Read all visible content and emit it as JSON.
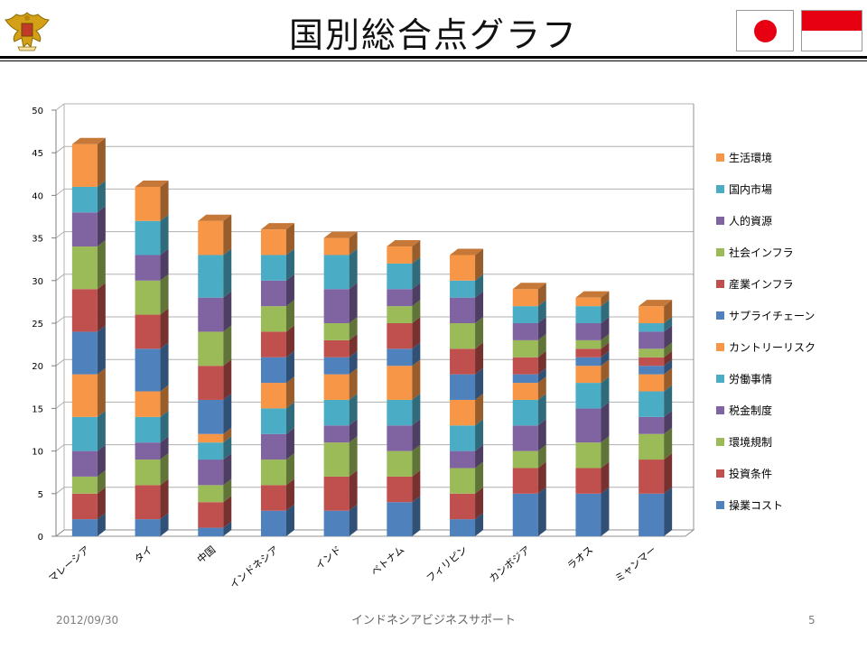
{
  "header": {
    "title": "国別総合点グラフ"
  },
  "footer": {
    "date": "2012/09/30",
    "center": "インドネシアビジネスサポート",
    "page": "5"
  },
  "chart_data": {
    "type": "bar",
    "stacked": true,
    "categories": [
      "マレーシア",
      "タイ",
      "中国",
      "インドネシア",
      "インド",
      "ベトナム",
      "フィリピン",
      "カンボジア",
      "ラオス",
      "ミャンマー"
    ],
    "ylim": [
      0,
      50
    ],
    "yticks": [
      0,
      5,
      10,
      15,
      20,
      25,
      30,
      35,
      40,
      45,
      50
    ],
    "grid": true,
    "legend_position": "right",
    "series": [
      {
        "name": "操業コスト",
        "color": "#4f81bd",
        "values": [
          2,
          2,
          1,
          3,
          3,
          4,
          2,
          5,
          5,
          5
        ]
      },
      {
        "name": "投資条件",
        "color": "#c0504d",
        "values": [
          3,
          4,
          3,
          3,
          4,
          3,
          3,
          3,
          3,
          4
        ]
      },
      {
        "name": "環境規制",
        "color": "#9bbb59",
        "values": [
          2,
          3,
          2,
          3,
          4,
          3,
          3,
          2,
          3,
          3
        ]
      },
      {
        "name": "税金制度",
        "color": "#8064a2",
        "values": [
          3,
          2,
          3,
          3,
          2,
          3,
          2,
          3,
          4,
          2
        ]
      },
      {
        "name": "労働事情",
        "color": "#4bacc6",
        "values": [
          4,
          3,
          2,
          3,
          3,
          3,
          3,
          3,
          3,
          3
        ]
      },
      {
        "name": "カントリーリスク",
        "color": "#f79646",
        "values": [
          5,
          3,
          1,
          3,
          3,
          4,
          3,
          2,
          2,
          2
        ]
      },
      {
        "name": "サプライチェーン",
        "color": "#4f81bd",
        "values": [
          5,
          5,
          4,
          3,
          2,
          2,
          3,
          1,
          1,
          1
        ]
      },
      {
        "name": "産業インフラ",
        "color": "#c0504d",
        "values": [
          5,
          4,
          4,
          3,
          2,
          3,
          3,
          2,
          1,
          1
        ]
      },
      {
        "name": "社会インフラ",
        "color": "#9bbb59",
        "values": [
          5,
          4,
          4,
          3,
          2,
          2,
          3,
          2,
          1,
          1
        ]
      },
      {
        "name": "人的資源",
        "color": "#8064a2",
        "values": [
          4,
          3,
          4,
          3,
          4,
          2,
          3,
          2,
          2,
          2
        ]
      },
      {
        "name": "国内市場",
        "color": "#4bacc6",
        "values": [
          3,
          4,
          5,
          3,
          4,
          3,
          2,
          2,
          2,
          1
        ]
      },
      {
        "name": "生活環境",
        "color": "#f79646",
        "values": [
          5,
          4,
          4,
          3,
          2,
          2,
          3,
          2,
          1,
          2
        ]
      }
    ]
  }
}
